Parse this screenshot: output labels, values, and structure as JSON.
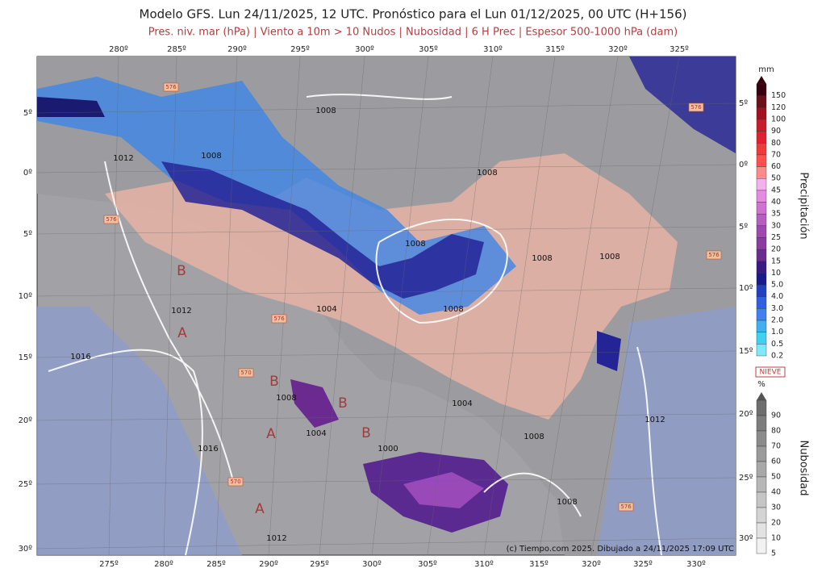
{
  "header": {
    "title": "Modelo GFS. Lun 24/11/2025, 12 UTC. Pronóstico para el Lun 01/12/2025, 00 UTC (H+156)",
    "subtitle": "Pres. niv. mar (hPa) | Viento a 10m > 10 Nudos | Nubosidad | 6 H Prec | Espesor 500-1000 hPa (dam)"
  },
  "map": {
    "top_lon_labels": [
      "280º",
      "285º",
      "290º",
      "295º",
      "300º",
      "305º",
      "310º",
      "315º",
      "320º",
      "325º"
    ],
    "bottom_lon_labels": [
      "275º",
      "280º",
      "285º",
      "290º",
      "295º",
      "300º",
      "305º",
      "310º",
      "315º",
      "320º",
      "325º",
      "330º"
    ],
    "left_lat_labels": [
      "5º",
      "0º",
      "5º",
      "10º",
      "15º",
      "20º",
      "25º",
      "30º"
    ],
    "right_lat_labels": [
      "5º",
      "0º",
      "5º",
      "10º",
      "15º",
      "20º",
      "25º",
      "30º"
    ],
    "isobar_labels": [
      "1008",
      "1008",
      "1008",
      "1008",
      "1008",
      "1008",
      "1008",
      "1008",
      "1008",
      "1008",
      "1012",
      "1012",
      "1012",
      "1012",
      "1004",
      "1004",
      "1004",
      "1000",
      "1016",
      "1016"
    ],
    "pressure_centers": [
      "B",
      "A",
      "B",
      "B",
      "B",
      "A",
      "A"
    ],
    "thickness_labels": [
      "576",
      "576",
      "576",
      "576",
      "576",
      "570",
      "570",
      "576"
    ],
    "credit": "(c) Tiempo.com 2025. Dibujado a 24/11/2025 17:09 UTC"
  },
  "legend": {
    "precip_unit": "mm",
    "precip_title": "Precipitación",
    "precip_levels": [
      "150",
      "120",
      "100",
      "90",
      "80",
      "70",
      "60",
      "50",
      "45",
      "40",
      "35",
      "30",
      "25",
      "20",
      "15",
      "10",
      "5.0",
      "4.0",
      "3.0",
      "2.0",
      "1.0",
      "0.5",
      "0.2"
    ],
    "snow_label": "NIEVE",
    "cloud_unit": "%",
    "cloud_title": "Nubosidad",
    "cloud_levels": [
      "90",
      "80",
      "70",
      "60",
      "50",
      "40",
      "30",
      "20",
      "10",
      "5"
    ]
  }
}
